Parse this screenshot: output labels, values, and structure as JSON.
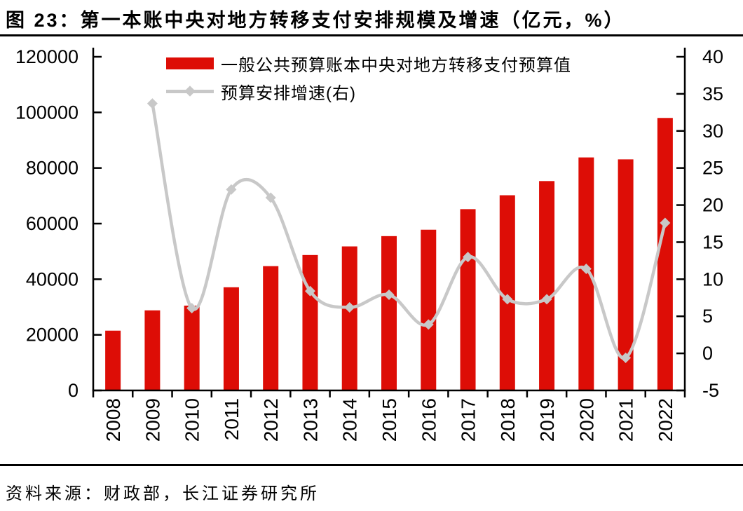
{
  "title": "图 23：第一本账中央对地方转移支付安排规模及增速（亿元，%）",
  "source": "资料来源：财政部，长江证券研究所",
  "chart_data": {
    "type": "bar",
    "subtype": "bar-line-dual-axis",
    "title": "第一本账中央对地方转移支付安排规模及增速（亿元，%）",
    "categories": [
      "2008",
      "2009",
      "2010",
      "2011",
      "2012",
      "2013",
      "2014",
      "2015",
      "2016",
      "2017",
      "2018",
      "2019",
      "2020",
      "2021",
      "2022"
    ],
    "series": [
      {
        "name": "一般公共预算账本中央对地方转移支付预算值",
        "type": "bar",
        "axis": "left",
        "color": "#dd0d06",
        "values": [
          21500,
          28800,
          30500,
          37100,
          44700,
          48700,
          51800,
          55500,
          57800,
          65200,
          70200,
          75300,
          83800,
          83100,
          98000
        ]
      },
      {
        "name": "预算安排增速(右)",
        "type": "line",
        "axis": "right",
        "color": "#c8c8c8",
        "smooth": true,
        "marker": "diamond",
        "values": [
          null,
          33.7,
          6.1,
          22.1,
          21.0,
          8.4,
          6.2,
          7.9,
          3.9,
          13.0,
          7.3,
          7.3,
          11.4,
          -0.6,
          17.6
        ]
      }
    ],
    "left_axis": {
      "min": 0,
      "max": 120000,
      "step": 20000,
      "ticks": [
        "0",
        "20000",
        "40000",
        "60000",
        "80000",
        "100000",
        "120000"
      ]
    },
    "right_axis": {
      "min": -5,
      "max": 40,
      "step": 5,
      "ticks": [
        "-5",
        "0",
        "5",
        "10",
        "15",
        "20",
        "25",
        "30",
        "35",
        "40"
      ]
    },
    "grid": false,
    "legend_position": "top-center",
    "axis_color": "#000000"
  }
}
